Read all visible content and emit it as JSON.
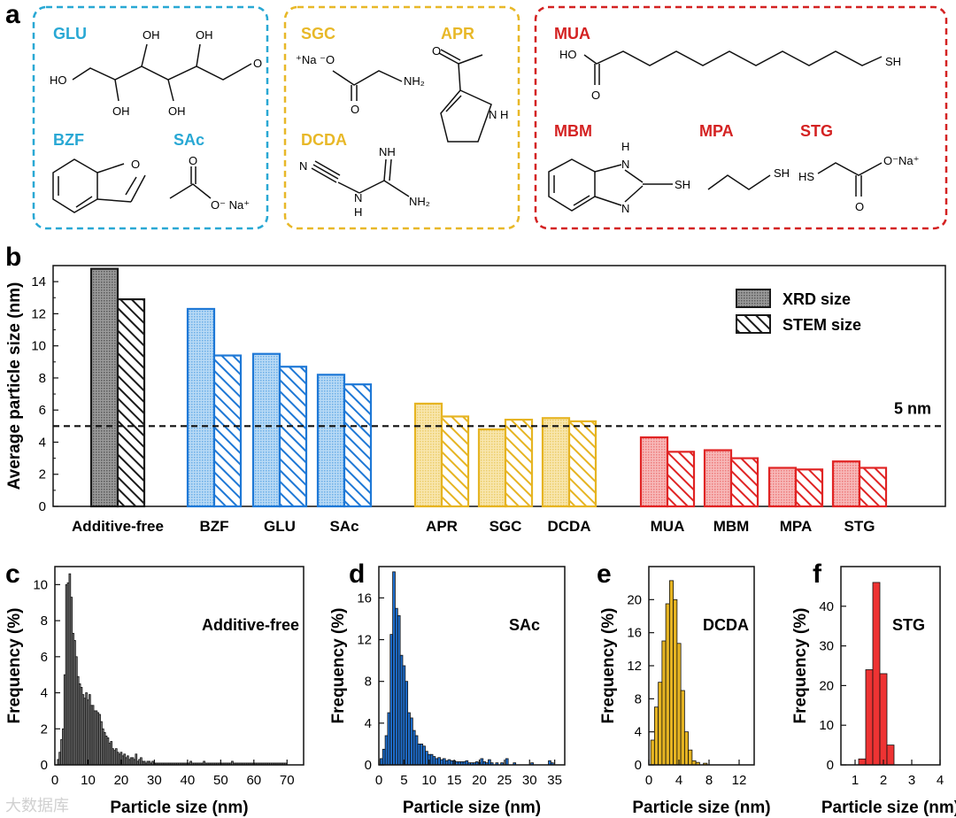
{
  "colors": {
    "black": "#4a4a4a",
    "blue": "#1e78d6",
    "gold": "#e6b422",
    "red": "#e02424",
    "cyanBox": "#29a8d4",
    "goldBox": "#e8b828",
    "redBox": "#d42222",
    "blueFill": "#a9d0f2",
    "goldFill": "#f5df9a",
    "redFill": "#f4a3a3",
    "greyFill": "#8f8f8f"
  },
  "panel_labels": {
    "a": "a",
    "b": "b",
    "c": "c",
    "d": "d",
    "e": "e",
    "f": "f"
  },
  "panel_a": {
    "groups": {
      "GLU": "GLU",
      "BZF": "BZF",
      "SAc": "SAc",
      "SGC": "SGC",
      "APR": "APR",
      "DCDA": "DCDA",
      "MUA": "MUA",
      "MBM": "MBM",
      "MPA": "MPA",
      "STG": "STG"
    },
    "atoms": {
      "glu_oh1": "OH",
      "glu_oh2": "OH",
      "glu_ho": "HO",
      "glu_oh3": "OH",
      "glu_oh4": "OH",
      "sac_o": "O",
      "sac_o2": "O⁻ Na⁺",
      "sgc_na": "⁺Na ⁻O",
      "sgc_o": "O",
      "sgc_nh2": "NH₂",
      "apr_o": "O",
      "apr_nh": "N H",
      "dcda_n": "N",
      "dcda_nh": "NH",
      "dcda_h": "H",
      "dcda_n2": "N",
      "dcda_nh2": "NH₂",
      "mua_ho": "HO",
      "mua_o": "O",
      "mua_sh": "SH",
      "mbm_h": "H",
      "mbm_n": "N",
      "mbm_n2": "N",
      "mbm_sh": "SH",
      "mpa_sh": "SH",
      "stg_hs": "HS",
      "stg_o": "O",
      "stg_ona": "O⁻Na⁺",
      "bzf_o": "O"
    }
  },
  "chart_data": [
    {
      "panel": "b",
      "type": "bar",
      "ylabel": "Average particle size (nm)",
      "ylim": [
        0,
        15
      ],
      "yticks": [
        0,
        2,
        4,
        6,
        8,
        10,
        12,
        14
      ],
      "categories": [
        "Additive-free",
        "BZF",
        "GLU",
        "SAc",
        "APR",
        "SGC",
        "DCDA",
        "MUA",
        "MBM",
        "MPA",
        "STG"
      ],
      "category_groups": [
        "black",
        "blue",
        "blue",
        "blue",
        "gold",
        "gold",
        "gold",
        "red",
        "red",
        "red",
        "red"
      ],
      "series": [
        {
          "name": "XRD size",
          "values": [
            14.8,
            12.3,
            9.5,
            8.2,
            6.4,
            4.8,
            5.5,
            4.3,
            3.5,
            2.4,
            2.8
          ]
        },
        {
          "name": "STEM size",
          "values": [
            12.9,
            9.4,
            8.7,
            7.6,
            5.6,
            5.4,
            5.3,
            3.4,
            3.0,
            2.3,
            2.4
          ]
        }
      ],
      "reference_line": {
        "value": 5,
        "label": "5 nm"
      },
      "legend": "top-right"
    },
    {
      "panel": "c",
      "type": "bar",
      "label": "Additive-free",
      "xlabel": "Particle size (nm)",
      "ylabel": "Frequency (%)",
      "xlim": [
        0,
        75
      ],
      "ylim": [
        0,
        11
      ],
      "xticks": [
        0,
        10,
        20,
        30,
        40,
        50,
        60,
        70
      ],
      "yticks": [
        0,
        2,
        4,
        6,
        8,
        10
      ],
      "bin_start": 1,
      "bin_width": 0.5,
      "values": [
        0.3,
        0.7,
        1.4,
        2.0,
        5.0,
        10.0,
        10.1,
        10.6,
        9.3,
        7.3,
        6.9,
        6.0,
        4.9,
        4.5,
        4.3,
        3.9,
        3.7,
        4.0,
        3.6,
        3.9,
        3.3,
        3.3,
        3.0,
        3.0,
        2.9,
        2.8,
        2.4,
        2.0,
        1.8,
        1.6,
        1.5,
        1.2,
        1.3,
        0.9,
        0.8,
        0.9,
        0.7,
        0.6,
        0.7,
        0.5,
        0.6,
        0.4,
        0.5,
        0.3,
        0.4,
        0.4,
        0.3,
        0.6,
        0.2,
        0.3,
        0.4,
        0.2,
        0.2,
        0.1,
        0.2,
        0.2,
        0.1,
        0.2,
        0.1,
        0.1,
        0.1,
        0.1,
        0.1,
        0.1,
        0.1,
        0.1,
        0.1,
        0.1,
        0.1,
        0.1,
        0.1,
        0.1,
        0.1,
        0.1,
        0.1,
        0.1,
        0.1,
        0.1,
        0.1,
        0.1,
        0.2,
        0.1,
        0.1,
        0.1,
        0.1,
        0.1,
        0.1,
        0.1,
        0.2,
        0.1,
        0.1,
        0.1,
        0.1,
        0.1,
        0.1,
        0.1,
        0.1,
        0.1,
        0.1,
        0.1,
        0.1,
        0.1,
        0.1,
        0.1,
        0.1,
        0.2,
        0.1,
        0.1,
        0.1,
        0.1,
        0.1,
        0.1,
        0.1,
        0.1,
        0.1,
        0.1,
        0.1,
        0.1,
        0.1,
        0.1,
        0.1,
        0.1,
        0.1,
        0.1,
        0.1,
        0.1,
        0.1,
        0.1,
        0.1,
        0.1,
        0.1,
        0.1,
        0.1,
        0.1,
        0.1,
        0.1,
        0.1,
        0.1
      ]
    },
    {
      "panel": "d",
      "type": "bar",
      "label": "SAc",
      "xlabel": "Particle size (nm)",
      "ylabel": "Frequency (%)",
      "xlim": [
        0,
        37
      ],
      "ylim": [
        0,
        19
      ],
      "xticks": [
        0,
        5,
        10,
        15,
        20,
        25,
        30,
        35
      ],
      "yticks": [
        0,
        4,
        8,
        12,
        16
      ],
      "bin_start": 0.5,
      "bin_width": 0.5,
      "values": [
        0.6,
        1.5,
        2.8,
        5.0,
        12.5,
        18.5,
        15.0,
        14.3,
        10.5,
        9.5,
        8.0,
        5.0,
        4.5,
        3.3,
        2.8,
        2.0,
        2.0,
        1.8,
        1.3,
        1.0,
        1.0,
        0.8,
        0.6,
        0.7,
        0.5,
        0.6,
        0.4,
        0.5,
        0.4,
        0.4,
        0.3,
        0.3,
        0.3,
        0.3,
        0.4,
        0.2,
        0.2,
        0.2,
        0.3,
        0.2,
        0.6,
        0.3,
        0.2,
        0.5,
        0.2,
        0,
        0.2,
        0,
        0.2,
        0,
        0.6,
        0,
        0,
        0.2,
        0,
        0,
        0,
        0,
        0,
        0,
        0.2,
        0,
        0,
        0,
        0,
        0,
        0,
        0.4,
        0.2,
        0
      ]
    },
    {
      "panel": "e",
      "type": "bar",
      "label": "DCDA",
      "xlabel": "Particle size (nm)",
      "ylabel": "Frequency (%)",
      "xlim": [
        0,
        14
      ],
      "ylim": [
        0,
        24
      ],
      "xticks": [
        0,
        4,
        8,
        12
      ],
      "yticks": [
        0,
        4,
        8,
        12,
        16,
        20
      ],
      "bin_start": 0.5,
      "bin_width": 0.5,
      "values": [
        3,
        7,
        10,
        15,
        19.5,
        22.3,
        20,
        14.7,
        9,
        4,
        1.8,
        0.5,
        0.3,
        0,
        0.2
      ]
    },
    {
      "panel": "f",
      "type": "bar",
      "label": "STG",
      "xlabel": "Particle size (nm)",
      "ylabel": "Frequency (%)",
      "xlim": [
        0.5,
        4
      ],
      "ylim": [
        0,
        50
      ],
      "xticks": [
        1,
        2,
        3,
        4
      ],
      "yticks": [
        0,
        10,
        20,
        30,
        40
      ],
      "bin_start": 1.25,
      "bin_width": 0.25,
      "values": [
        1.5,
        24,
        46,
        23,
        5
      ]
    }
  ],
  "watermark": "大数据库"
}
